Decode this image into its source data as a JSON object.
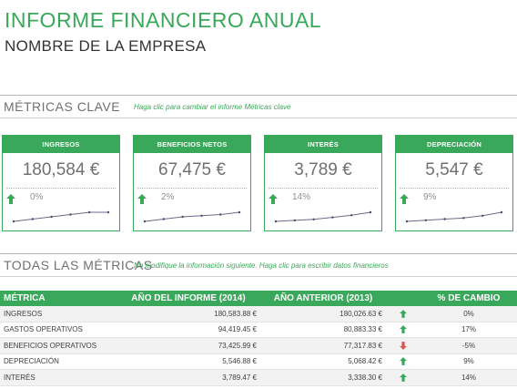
{
  "report": {
    "title": "INFORME FINANCIERO ANUAL",
    "company": "NOMBRE DE LA EMPRESA"
  },
  "key_metrics": {
    "heading": "MÉTRICAS CLAVE",
    "hint": "Haga clic para cambiar el informe Métricas clave",
    "cards": [
      {
        "label": "INGRESOS",
        "value": "180,584 €",
        "change": "0%",
        "trend": "up",
        "spark": [
          1,
          2,
          3,
          4,
          5,
          5
        ]
      },
      {
        "label": "BENEFICIOS NETOS",
        "value": "67,475 €",
        "change": "2%",
        "trend": "up",
        "spark": [
          1,
          2,
          3,
          3.5,
          4,
          5
        ]
      },
      {
        "label": "INTERÉS",
        "value": "3,789 €",
        "change": "14%",
        "trend": "up",
        "spark": [
          1,
          1.5,
          2,
          3,
          4,
          5.5
        ]
      },
      {
        "label": "DEPRECIACIÓN",
        "value": "5,547 €",
        "change": "9%",
        "trend": "up",
        "spark": [
          1,
          1.5,
          2,
          2.5,
          3.5,
          5
        ]
      }
    ]
  },
  "all_metrics": {
    "heading": "TODAS LAS MÉTRICAS",
    "hint": "No modifique la información siguiente. Haga clic para escribir datos financieros",
    "columns": [
      "MÉTRICA",
      "AÑO DEL INFORME (2014)",
      "AÑO ANTERIOR (2013)",
      "% DE CAMBIO"
    ],
    "rows": [
      {
        "name": "INGRESOS",
        "current": "180,583.88 €",
        "previous": "180,026.63 €",
        "trend": "up",
        "change": "0%"
      },
      {
        "name": "GASTOS OPERATIVOS",
        "current": "94,419.45 €",
        "previous": "80,883.33 €",
        "trend": "up",
        "change": "17%"
      },
      {
        "name": "BENEFICIOS OPERATIVOS",
        "current": "73,425.99 €",
        "previous": "77,317.83 €",
        "trend": "down",
        "change": "-5%"
      },
      {
        "name": "DEPRECIACIÓN",
        "current": "5,546.88 €",
        "previous": "5,068.42 €",
        "trend": "up",
        "change": "9%"
      },
      {
        "name": "INTERÉS",
        "current": "3,789.47 €",
        "previous": "3,338.30 €",
        "trend": "up",
        "change": "14%"
      }
    ]
  },
  "colors": {
    "accent": "#3aa85a",
    "up": "#3aa85a",
    "down": "#d9534f"
  }
}
